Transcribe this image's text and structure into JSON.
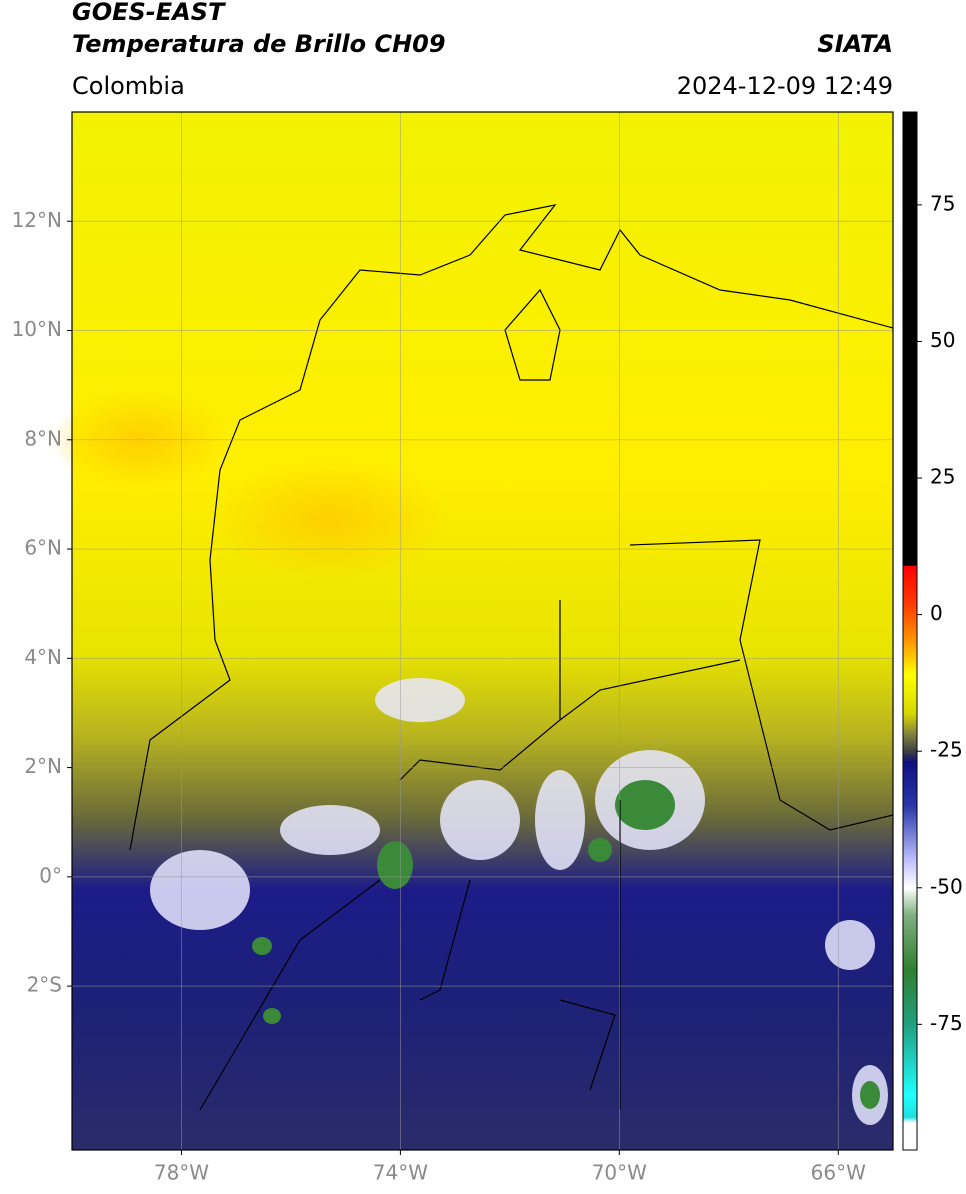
{
  "header": {
    "title": "GOES-EAST",
    "subtitle": "Temperatura de Brillo CH09",
    "source": "SIATA",
    "region": "Colombia",
    "datetime": "2024-12-09 12:49"
  },
  "map": {
    "xlim": [
      -80,
      -65
    ],
    "ylim": [
      -5,
      14
    ],
    "xticks": [
      {
        "value": -78,
        "label": "78°W"
      },
      {
        "value": -74,
        "label": "74°W"
      },
      {
        "value": -70,
        "label": "70°W"
      },
      {
        "value": -66,
        "label": "66°W"
      }
    ],
    "yticks": [
      {
        "value": 12,
        "label": "12°N"
      },
      {
        "value": 10,
        "label": "10°N"
      },
      {
        "value": 8,
        "label": "8°N"
      },
      {
        "value": 6,
        "label": "6°N"
      },
      {
        "value": 4,
        "label": "4°N"
      },
      {
        "value": 2,
        "label": "2°N"
      },
      {
        "value": 0,
        "label": "0°"
      },
      {
        "value": -2,
        "label": "2°S"
      }
    ],
    "grid": true
  },
  "colorbar": {
    "ylim": [
      -98,
      92
    ],
    "yticks": [
      75,
      50,
      25,
      0,
      -25,
      -50,
      -75
    ],
    "colormap": [
      {
        "value": 92,
        "color": "#000000"
      },
      {
        "value": 9,
        "color": "#000000"
      },
      {
        "value": 8.9,
        "color": "#ff0000"
      },
      {
        "value": 2,
        "color": "#ff3a00"
      },
      {
        "value": -5,
        "color": "#ff9900"
      },
      {
        "value": -11,
        "color": "#ffff00"
      },
      {
        "value": -18,
        "color": "#d8d800"
      },
      {
        "value": -22,
        "color": "#808040"
      },
      {
        "value": -25,
        "color": "#404040"
      },
      {
        "value": -27,
        "color": "#101080"
      },
      {
        "value": -35,
        "color": "#2838a8"
      },
      {
        "value": -45,
        "color": "#c0c0ff"
      },
      {
        "value": -50,
        "color": "#ffffff"
      },
      {
        "value": -55,
        "color": "#80b080"
      },
      {
        "value": -65,
        "color": "#308030"
      },
      {
        "value": -75,
        "color": "#20a080"
      },
      {
        "value": -88,
        "color": "#20ffff"
      },
      {
        "value": -92,
        "color": "#20e0e0"
      },
      {
        "value": -93,
        "color": "#ffffff"
      },
      {
        "value": -98,
        "color": "#ffffff"
      }
    ]
  }
}
